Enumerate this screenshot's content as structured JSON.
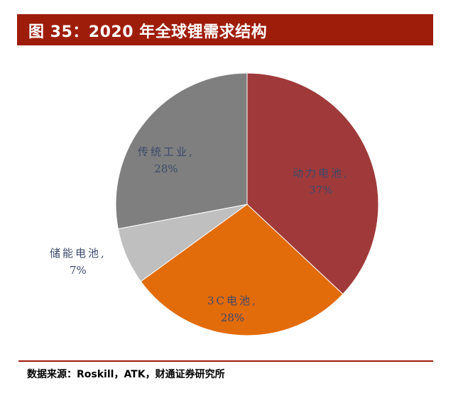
{
  "figure": {
    "title": "图 35：2020 年全球锂需求结构",
    "source": "数据来源：Roskill，ATK，财通证券研究所"
  },
  "colors": {
    "title_bar": "#9e1d0a",
    "label_text": "#3b4a6b"
  },
  "chart_data": {
    "type": "pie",
    "title": "2020 年全球锂需求结构",
    "slices": [
      {
        "label": "动力电池",
        "value": 37,
        "display": "动力电池,",
        "pct": "37%",
        "color": "#a03a3a"
      },
      {
        "label": "3C电池",
        "value": 28,
        "display": "3C电池,",
        "pct": "28%",
        "color": "#e26b0a"
      },
      {
        "label": "储能电池",
        "value": 7,
        "display": "储能电池,",
        "pct": "7%",
        "color": "#bfbfbf"
      },
      {
        "label": "传统工业",
        "value": 28,
        "display": "传统工业,",
        "pct": "28%",
        "color": "#7f7f7f"
      }
    ],
    "start_angle_deg": 0,
    "direction": "clockwise",
    "legend": "none",
    "data_labels": "category, percentage"
  }
}
